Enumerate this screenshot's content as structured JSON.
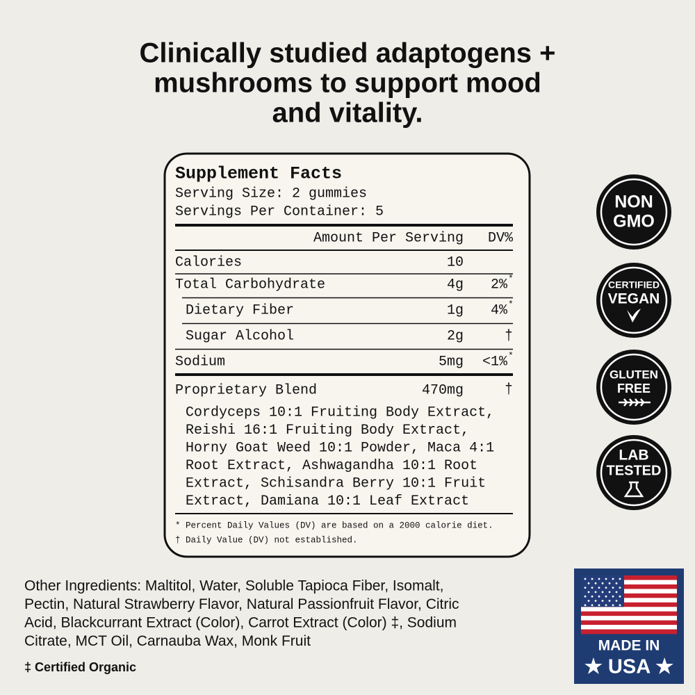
{
  "header": {
    "title": [
      "Clinically studied adaptogens +",
      "mushrooms to support mood",
      "and vitality."
    ]
  },
  "facts": {
    "title": "Supplement Facts",
    "serving_size": "Serving Size: 2 gummies",
    "servings": "Servings Per Container: 5",
    "columns": [
      "Amount Per Serving",
      "DV%"
    ],
    "rows": [
      {
        "name": "Calories",
        "amount": "10"
      },
      {
        "name": "Total Carbohydrate",
        "amount": "4g",
        "dv": "2%",
        "note": "*"
      },
      {
        "name": "Dietary Fiber",
        "amount": "1g",
        "dv": "4%",
        "note": "*"
      },
      {
        "name": "Sugar Alcohol",
        "amount": "2g",
        "dv": "†"
      },
      {
        "name": "Sodium",
        "amount": "5mg",
        "dv": "<1%",
        "note": "*"
      }
    ],
    "blend": {
      "name": "Proprietary Blend",
      "amount": "470mg",
      "dv": "†",
      "ingredients": [
        "Cordyceps 10:1 Fruiting Body Extract,",
        "Reishi 16:1 Fruiting Body Extract,",
        "Horny Goat Weed 10:1 Powder, Maca 4:1",
        "Root Extract, Ashwagandha 10:1 Root",
        "Extract, Schisandra Berry 10:1 Fruit",
        "Extract, Damiana 10:1 Leaf Extract"
      ]
    },
    "footnotes": [
      "* Percent Daily Values (DV) are based on a 2000 calorie diet.",
      "† Daily Value (DV) not established."
    ]
  },
  "badges": [
    [
      "NON",
      "GMO"
    ],
    [
      "CERTIFIED",
      "VEGAN"
    ],
    [
      "GLUTEN",
      "FREE"
    ],
    [
      "LAB",
      "TESTED"
    ]
  ],
  "other_ingredients": [
    "Other Ingredients: Maltitol, Water, Soluble Tapioca Fiber, Isomalt,",
    "Pectin, Natural Strawberry Flavor, Natural Passionfruit Flavor, Citric",
    "Acid, Blackcurrant Extract (Color), Carrot Extract (Color) ‡, Sodium",
    "Citrate, MCT Oil, Carnauba Wax, Monk Fruit"
  ],
  "organic_note": "‡ Certified Organic",
  "made_in": [
    "MADE IN",
    "★ USA ★"
  ]
}
